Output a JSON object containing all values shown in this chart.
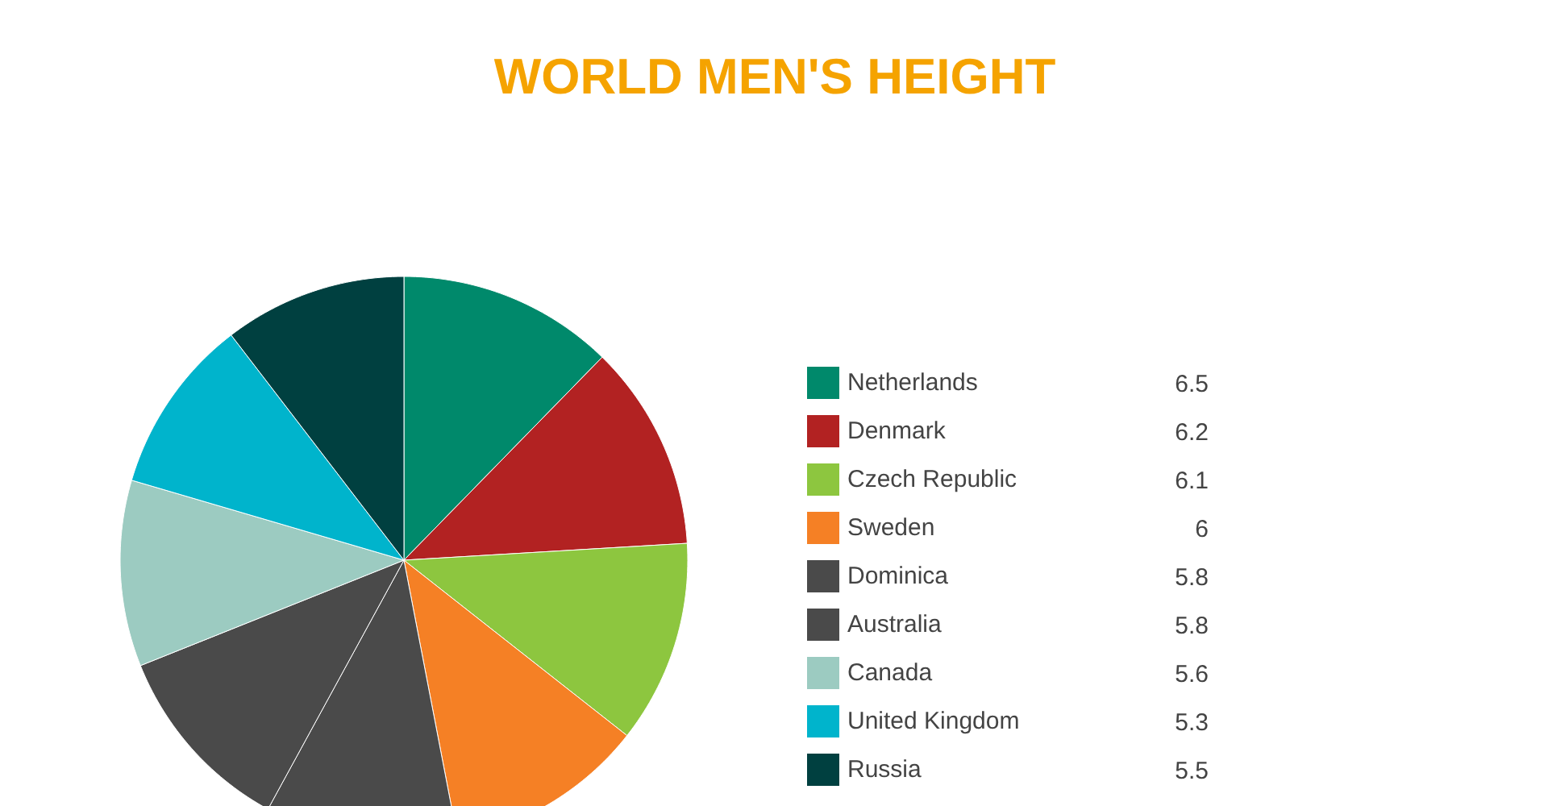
{
  "chart_data": {
    "type": "pie",
    "title": "WORLD MEN'S HEIGHT",
    "categories": [
      "Netherlands",
      "Denmark",
      "Czech Republic",
      "Sweden",
      "Dominica",
      "Australia",
      "Canada",
      "United Kingdom",
      "Russia"
    ],
    "values": [
      6.5,
      6.2,
      6.1,
      6,
      5.8,
      5.8,
      5.6,
      5.3,
      5.5
    ],
    "colors": [
      "#00896b",
      "#b22222",
      "#8dc63f",
      "#f58025",
      "#4a4a4a",
      "#4a4a4a",
      "#9ccbc1",
      "#00b4cc",
      "#004040"
    ],
    "legend": "right",
    "data_labels": true
  }
}
